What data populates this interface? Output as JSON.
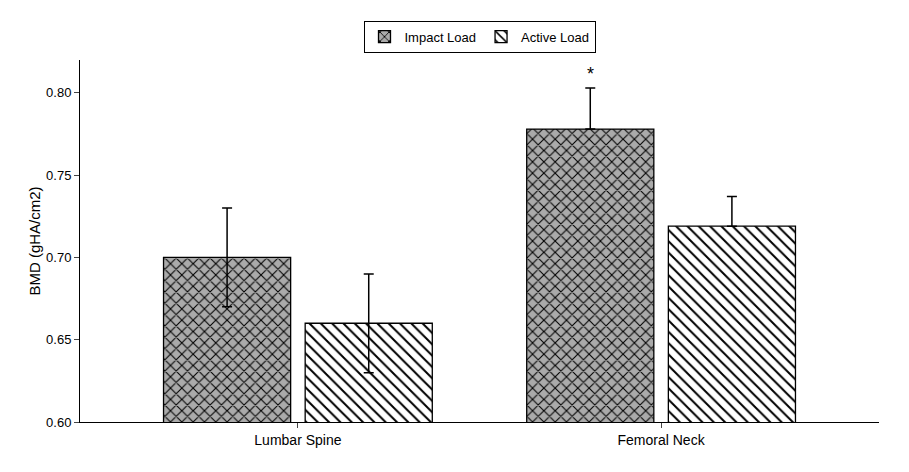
{
  "chart_data": {
    "type": "bar",
    "categories": [
      "Lumbar Spine",
      "Femoral Neck"
    ],
    "series": [
      {
        "name": "Impact Load",
        "color": "#aaaaaa",
        "values": [
          0.7,
          0.778
        ],
        "error_plus": [
          0.03,
          0.025
        ],
        "error_minus": [
          0.03,
          0
        ]
      },
      {
        "name": "Active Load",
        "color": "#ffffff",
        "values": [
          0.66,
          0.719
        ],
        "error_plus": [
          0.03,
          0.018
        ],
        "error_minus": [
          0.03,
          0
        ]
      }
    ],
    "ylabel": "BMD (gHA/cm2)",
    "ylim": [
      0.6,
      0.82
    ],
    "yticks": [
      {
        "value": 0.6,
        "label": "0.60"
      },
      0.65,
      {
        "value": 0.7,
        "label": "0.70"
      },
      0.75,
      {
        "value": 0.8,
        "label": "0.80"
      }
    ],
    "annotations": [
      {
        "text": "*",
        "series": "Impact Load",
        "category": "Femoral Neck"
      }
    ],
    "legend": "top",
    "grid": false
  }
}
